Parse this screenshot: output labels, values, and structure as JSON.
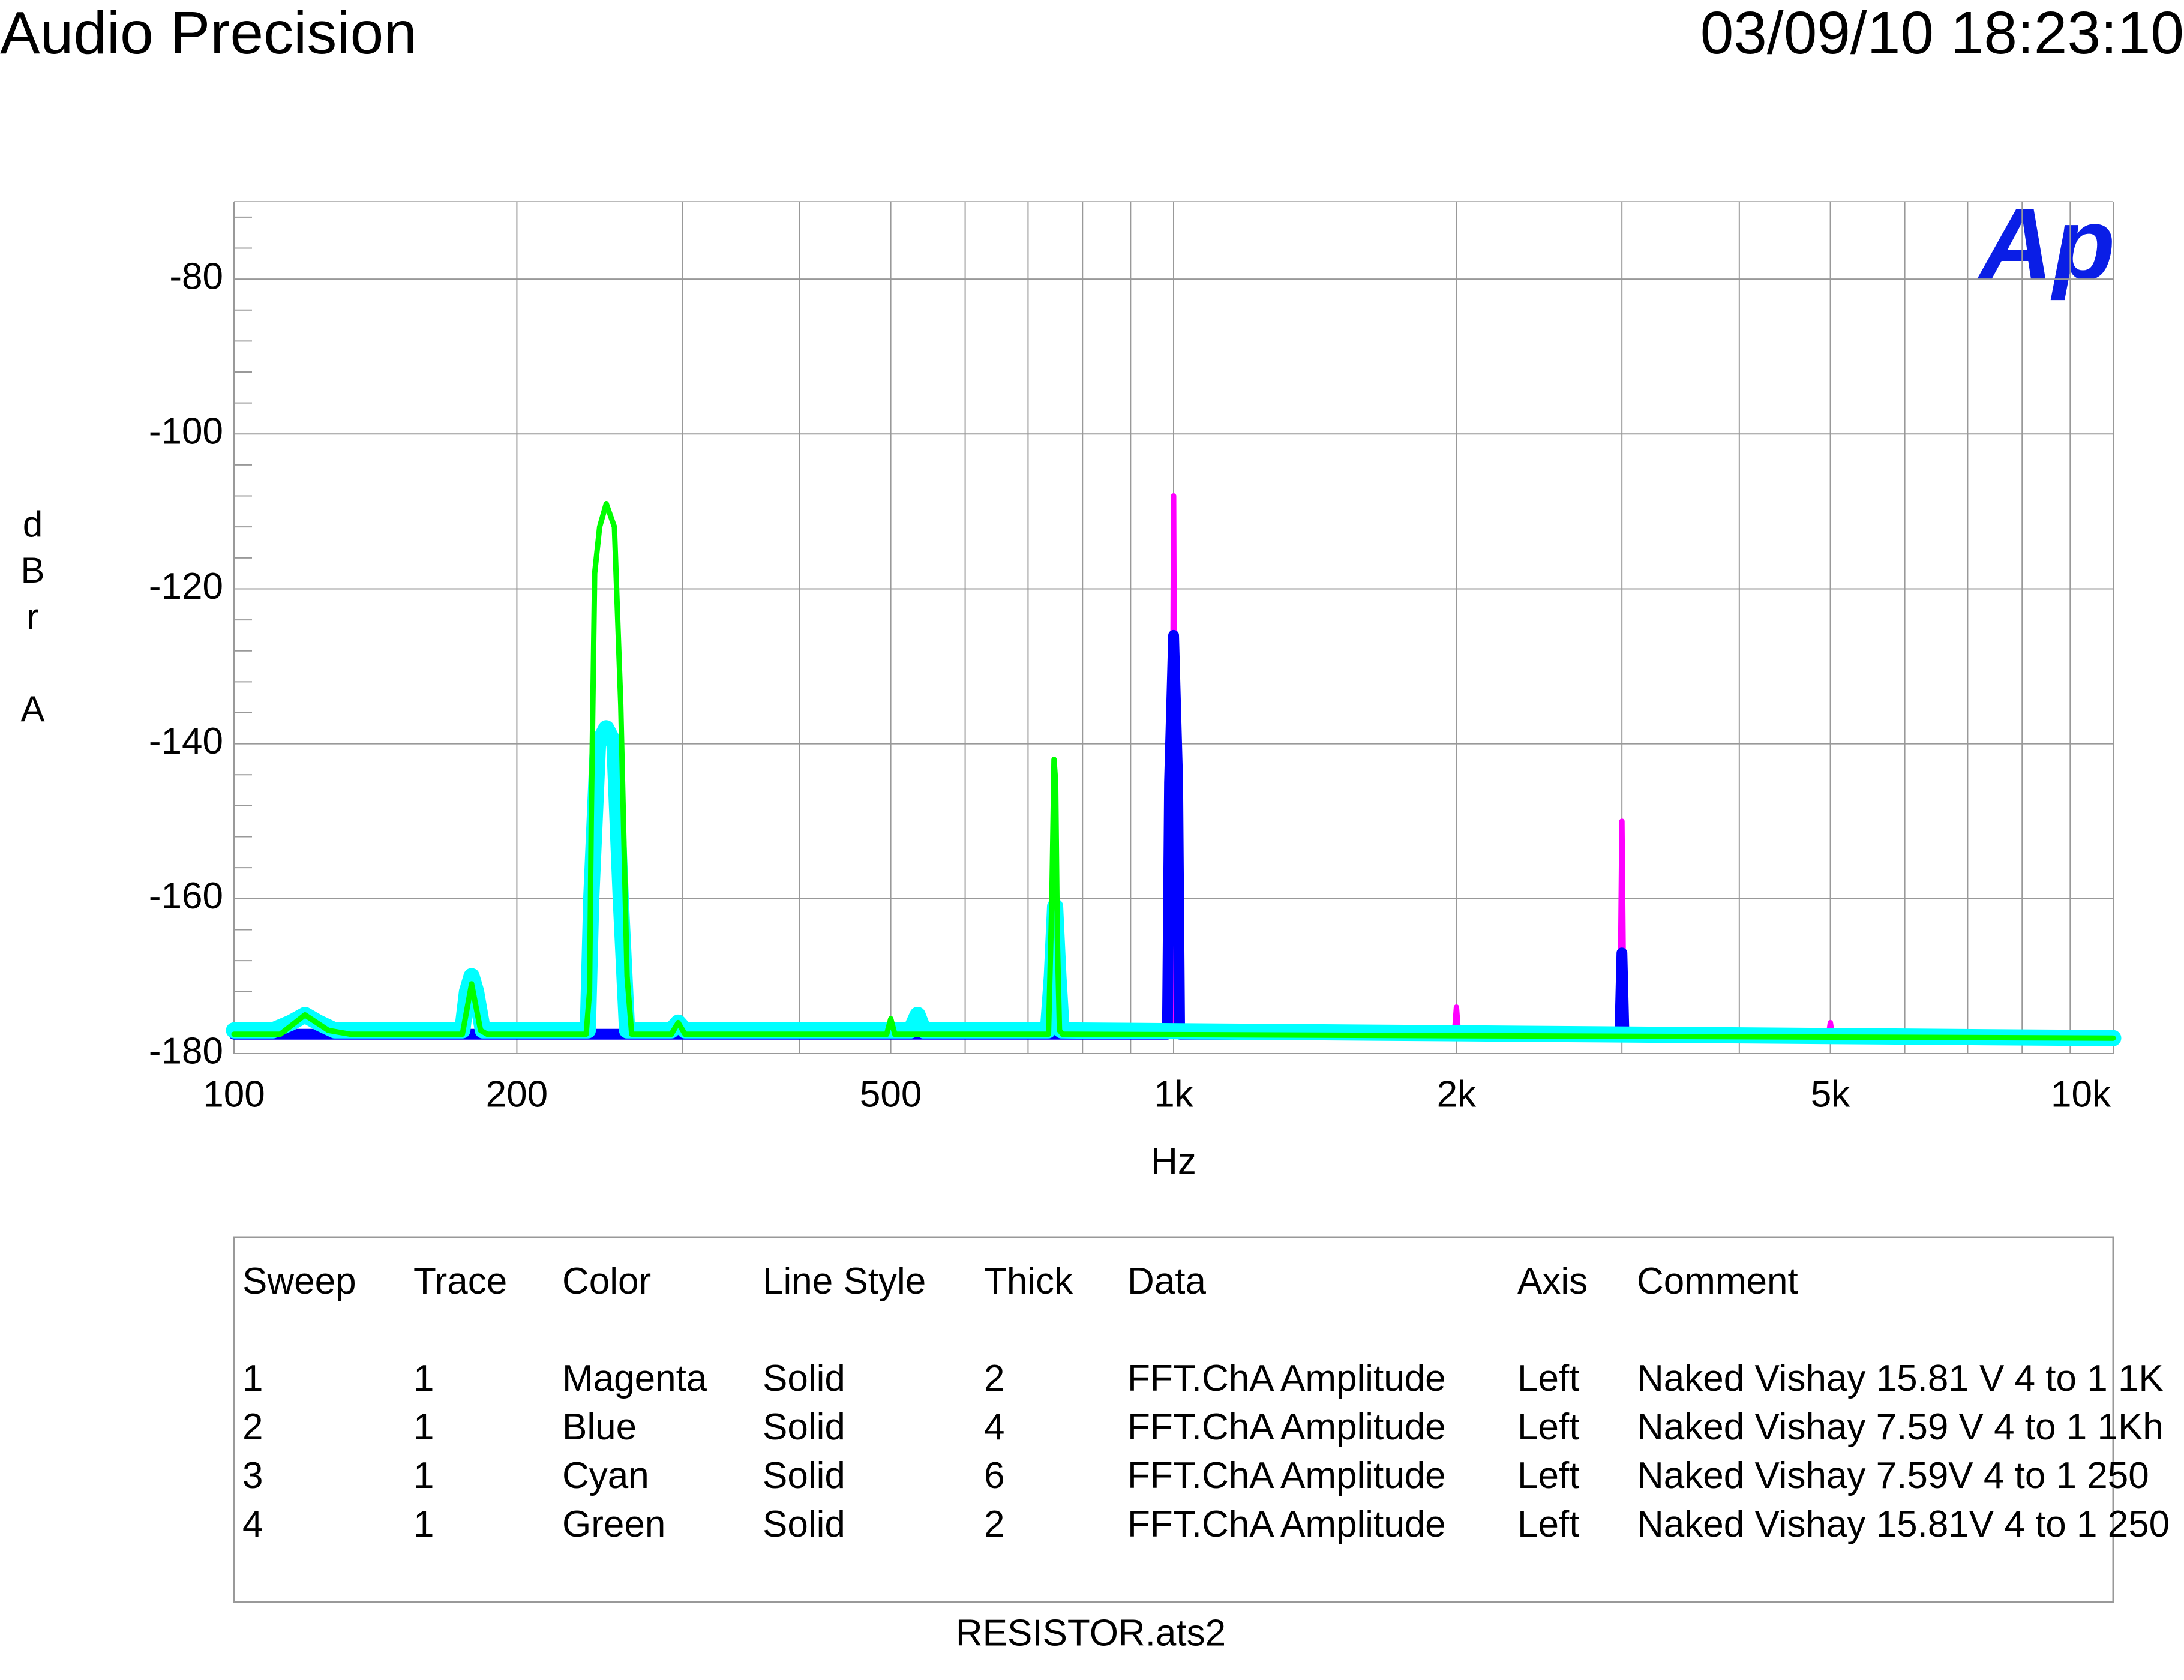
{
  "chart_data": {
    "type": "line",
    "title": "Audio Precision",
    "date": "03/09/10 18:23:10",
    "logo": "Ap",
    "ylabel": "dBr A",
    "xlabel": "Hz",
    "file": "RESISTOR.ats2",
    "xscale": "log",
    "grid": true,
    "xlim": [
      100,
      10000
    ],
    "ylim": [
      -180,
      -70
    ],
    "xticks": [
      100,
      200,
      500,
      {
        "value": 1000,
        "label": "1k"
      },
      {
        "value": 2000,
        "label": "2k"
      },
      {
        "value": 5000,
        "label": "5k"
      },
      {
        "value": 10000,
        "label": "10k"
      }
    ],
    "xminor": [
      300,
      400,
      600,
      700,
      800,
      900,
      3000,
      4000,
      6000,
      7000,
      8000,
      9000
    ],
    "yticks": [
      -180,
      -160,
      -140,
      -120,
      -100,
      -80
    ],
    "yminor": [
      -176,
      -172,
      -168,
      -164,
      -156,
      -152,
      -148,
      -144,
      -136,
      -132,
      -128,
      -124,
      -116,
      -112,
      -108,
      -104,
      -96,
      -92,
      -88,
      -84,
      -76,
      -72
    ],
    "series": [
      {
        "color": "#ff00ff",
        "x": [
          100,
          995,
          1000,
          1005,
          1990,
          2000,
          2010,
          2985,
          3000,
          3015,
          4975,
          5000,
          5025,
          10000
        ],
        "values": [
          -177.5,
          -177.5,
          -108,
          -177.5,
          -177.5,
          -174,
          -177.5,
          -177.6,
          -150,
          -177.6,
          -177.8,
          -176,
          -177.8,
          -178
        ]
      },
      {
        "color": "#0000ff",
        "x": [
          100,
          985,
          990,
          1000,
          1010,
          1015,
          2985,
          3000,
          3015,
          10000
        ],
        "values": [
          -177.5,
          -177.5,
          -145,
          -126,
          -145,
          -177.5,
          -177.6,
          -167,
          -177.6,
          -178
        ]
      },
      {
        "color": "#00ffff",
        "x": [
          100,
          110,
          115,
          119,
          123,
          128,
          175,
          177,
          179,
          181,
          184,
          238,
          240,
          244,
          249,
          254,
          258,
          262,
          292,
          297,
          302,
          525,
          534,
          542,
          735,
          742,
          748,
          754,
          760,
          10000
        ],
        "values": [
          -177,
          -177,
          -176,
          -175,
          -176,
          -177,
          -177,
          -172,
          -170,
          -172,
          -177,
          -177,
          -160,
          -140,
          -138,
          -140,
          -160,
          -177,
          -177,
          -176,
          -177,
          -177,
          -175,
          -177,
          -177,
          -170,
          -161,
          -170,
          -177,
          -178
        ]
      },
      {
        "color": "#00ff00",
        "x": [
          100,
          112,
          119,
          126,
          133,
          175,
          179,
          183,
          186,
          237,
          239,
          240,
          242,
          245,
          249,
          254,
          258,
          262,
          265,
          292,
          297,
          302,
          495,
          500,
          505,
          736,
          742,
          746,
          749,
          752,
          756,
          762,
          10000
        ],
        "values": [
          -177.5,
          -177.5,
          -175,
          -177,
          -177.5,
          -177.5,
          -171,
          -177,
          -177.5,
          -177.5,
          -172,
          -150,
          -118,
          -112,
          -109,
          -112,
          -135,
          -170,
          -177.5,
          -177.5,
          -176,
          -177.5,
          -177.5,
          -175.5,
          -177.5,
          -177.5,
          -160,
          -142,
          -145,
          -165,
          -177,
          -177.5,
          -178
        ]
      }
    ],
    "legend_table": {
      "columns": [
        "Sweep",
        "Trace",
        "Color",
        "Line Style",
        "Thick",
        "Data",
        "Axis",
        "Comment"
      ],
      "rows": [
        [
          1,
          1,
          "Magenta",
          "Solid",
          2,
          "FFT.ChA Amplitude",
          "Left",
          "Naked Vishay 15.81 V 4 to 1 1K"
        ],
        [
          2,
          1,
          "Blue",
          "Solid",
          4,
          "FFT.ChA Amplitude",
          "Left",
          "Naked Vishay 7.59 V 4 to 1 1Kh"
        ],
        [
          3,
          1,
          "Cyan",
          "Solid",
          6,
          "FFT.ChA Amplitude",
          "Left",
          "Naked Vishay 7.59V 4 to 1 250"
        ],
        [
          4,
          1,
          "Green",
          "Solid",
          2,
          "FFT.ChA Amplitude",
          "Left",
          "Naked Vishay 15.81V 4 to 1 250"
        ]
      ]
    }
  }
}
